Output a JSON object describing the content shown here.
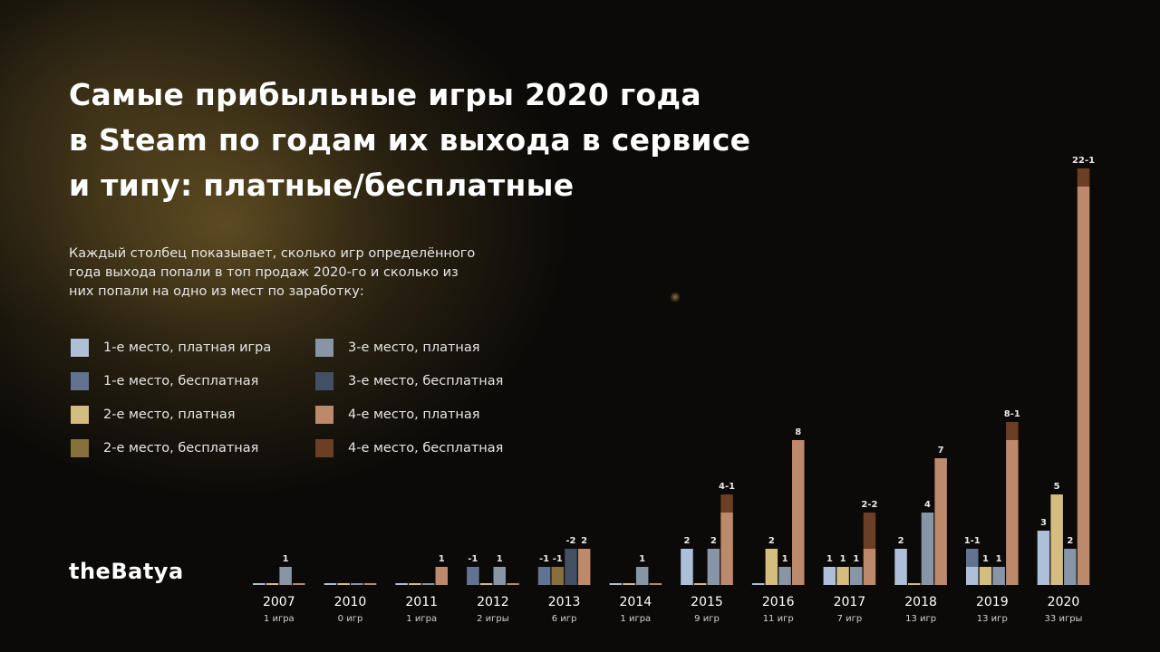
{
  "title_lines": [
    "Самые прибыльные игры 2020 года",
    "в Steam по годам их выхода в сервисе",
    "и типу: платные/бесплатные"
  ],
  "description_lines": [
    "Каждый столбец показывает, сколько игр определённого",
    "года выхода попали в топ продаж 2020-го и сколько из",
    "них попали на одно из мест по заработку:"
  ],
  "brand": "theBatya",
  "colors": {
    "place1_paid": "#aebfd9",
    "place1_free": "#627391",
    "place2_paid": "#d4bd7e",
    "place2_free": "#88703d",
    "place3_paid": "#8895a6",
    "place3_free": "#435063",
    "place4_paid": "#bc8a6a",
    "place4_free": "#6a3f24"
  },
  "legend": [
    {
      "label": "1-е место, платная игра",
      "color_key": "place1_paid"
    },
    {
      "label": "1-е место, бесплатная",
      "color_key": "place1_free"
    },
    {
      "label": "2-е место, платная",
      "color_key": "place2_paid"
    },
    {
      "label": "2-е место, бесплатная",
      "color_key": "place2_free"
    },
    {
      "label": "3-е место, платная",
      "color_key": "place3_paid"
    },
    {
      "label": "3-е место, бесплатная",
      "color_key": "place3_free"
    },
    {
      "label": "4-е место, платная",
      "color_key": "place4_paid"
    },
    {
      "label": "4-е место, бесплатная",
      "color_key": "place4_free"
    }
  ],
  "chart_data": {
    "type": "bar",
    "stacked": true,
    "categories": [
      "2007",
      "2010",
      "2011",
      "2012",
      "2013",
      "2014",
      "2015",
      "2016",
      "2017",
      "2018",
      "2019",
      "2020"
    ],
    "category_sublabels": [
      "1 игра",
      "0 игр",
      "1 игра",
      "2 игры",
      "6 игр",
      "1 игра",
      "9 игр",
      "11 игр",
      "7 игр",
      "13 игр",
      "13 игр",
      "33 игры"
    ],
    "groups": [
      {
        "place": 1,
        "paid": [
          0,
          0,
          0,
          0,
          0,
          0,
          2,
          0,
          1,
          2,
          1,
          3
        ],
        "free": [
          0,
          0,
          0,
          1,
          1,
          0,
          0,
          0,
          0,
          0,
          1,
          0
        ],
        "labels": [
          "",
          "",
          "",
          "-1",
          "-1",
          "",
          "2",
          "",
          "1",
          "2",
          "1-1",
          "3"
        ]
      },
      {
        "place": 2,
        "paid": [
          0,
          0,
          0,
          0,
          0,
          0,
          0,
          2,
          1,
          0,
          1,
          5
        ],
        "free": [
          0,
          0,
          0,
          0,
          1,
          0,
          0,
          0,
          0,
          0,
          0,
          0
        ],
        "labels": [
          "",
          "",
          "",
          "",
          "-1",
          "",
          "",
          "2",
          "1",
          "",
          "1",
          "5"
        ]
      },
      {
        "place": 3,
        "paid": [
          1,
          0,
          0,
          1,
          0,
          1,
          2,
          1,
          1,
          4,
          1,
          2
        ],
        "free": [
          0,
          0,
          0,
          0,
          2,
          0,
          0,
          0,
          0,
          0,
          0,
          0
        ],
        "labels": [
          "1",
          "",
          "",
          "1",
          "-2",
          "1",
          "2",
          "1",
          "1",
          "4",
          "1",
          "2"
        ]
      },
      {
        "place": 4,
        "paid": [
          0,
          0,
          1,
          0,
          2,
          0,
          4,
          8,
          2,
          7,
          8,
          22
        ],
        "free": [
          0,
          0,
          0,
          0,
          0,
          0,
          1,
          0,
          2,
          0,
          1,
          1
        ],
        "labels": [
          "",
          "",
          "1",
          "",
          "2",
          "",
          "4-1",
          "8",
          "2-2",
          "7",
          "8-1",
          "22-1"
        ]
      }
    ],
    "ylim": [
      0,
      23
    ]
  }
}
